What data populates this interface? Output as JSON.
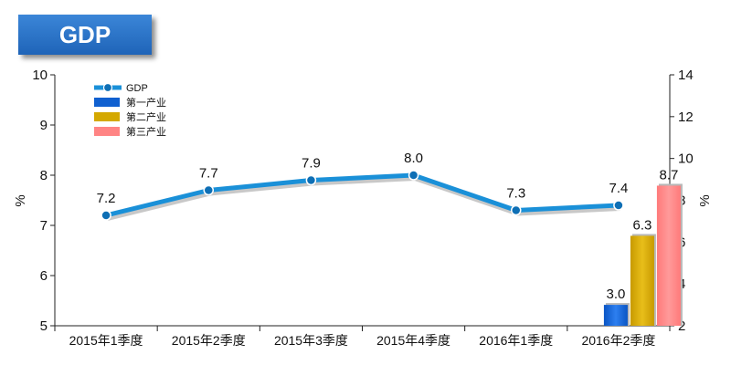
{
  "header": {
    "title": "GDP"
  },
  "chart_data": {
    "type": "bar+line",
    "categories": [
      "2015年1季度",
      "2015年2季度",
      "2015年3季度",
      "2015年4季度",
      "2016年1季度",
      "2016年2季度"
    ],
    "line_series": {
      "name": "GDP",
      "values": [
        7.2,
        7.7,
        7.9,
        8.0,
        7.3,
        7.4
      ],
      "color": "#1a90d8",
      "axis": "left"
    },
    "bar_series": [
      {
        "name": "第一产业",
        "category": "2016年2季度",
        "value": 3.0,
        "label": "3.0",
        "color": "#1060d0"
      },
      {
        "name": "第二产业",
        "category": "2016年2季度",
        "value": 6.3,
        "label": "6.3",
        "color": "#d4a800"
      },
      {
        "name": "第三产业",
        "category": "2016年2季度",
        "value": 8.7,
        "label": "8.7",
        "color": "#ff8484"
      }
    ],
    "line_labels": [
      "7.2",
      "7.7",
      "7.9",
      "8.0",
      "7.3",
      "7.4"
    ],
    "y_left": {
      "label": "%",
      "min": 5,
      "max": 10,
      "ticks": [
        5,
        6,
        7,
        8,
        9,
        10
      ]
    },
    "y_right": {
      "label": "%",
      "min": 2,
      "max": 14,
      "ticks": [
        2,
        4,
        6,
        8,
        10,
        12,
        14
      ]
    },
    "grid": false,
    "legend": {
      "position": "top-left",
      "items": [
        "GDP",
        "第一产业",
        "第二产业",
        "第三产业"
      ]
    }
  }
}
